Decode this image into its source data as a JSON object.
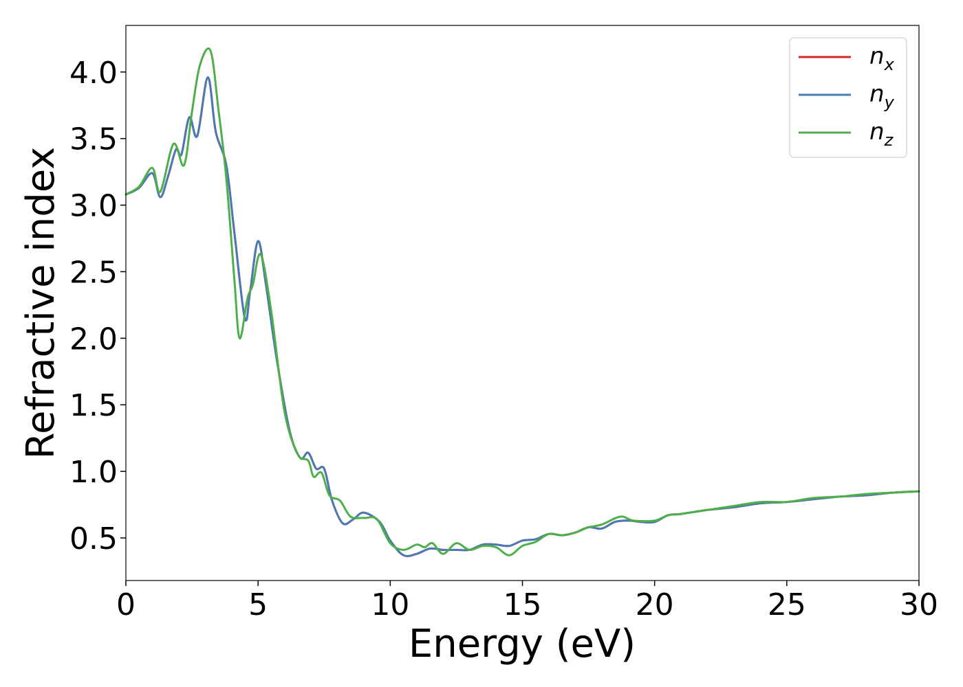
{
  "chart_data": {
    "type": "line",
    "xlabel": "Energy (eV)",
    "ylabel": "Refractive index",
    "xlim": [
      0,
      30
    ],
    "ylim": [
      0.18,
      4.35
    ],
    "xticks": [
      0,
      5,
      10,
      15,
      20,
      25,
      30
    ],
    "yticks": [
      0.5,
      1.0,
      1.5,
      2.0,
      2.5,
      3.0,
      3.5,
      4.0
    ],
    "xtick_labels": [
      "0",
      "5",
      "10",
      "15",
      "20",
      "25",
      "30"
    ],
    "ytick_labels": [
      "0.5",
      "1.0",
      "1.5",
      "2.0",
      "2.5",
      "3.0",
      "3.5",
      "4.0"
    ],
    "grid": false,
    "legend_position": "top-right",
    "series": [
      {
        "name": "n_x",
        "label_base": "n",
        "label_sub": "x",
        "color": "#d62728",
        "x": [
          0,
          0.5,
          1.0,
          1.3,
          1.6,
          1.9,
          2.1,
          2.4,
          2.7,
          3.1,
          3.4,
          3.8,
          4.1,
          4.5,
          4.7,
          5.0,
          5.3,
          5.7,
          6.2,
          6.6,
          6.9,
          7.2,
          7.5,
          7.8,
          8.2,
          8.6,
          9.0,
          9.6,
          10.0,
          10.5,
          11.0,
          11.5,
          12.0,
          12.5,
          13.0,
          13.5,
          14.0,
          14.5,
          15.0,
          15.5,
          16.0,
          16.5,
          17.0,
          17.5,
          18.0,
          18.5,
          19.0,
          19.5,
          20.0,
          20.5,
          21.0,
          22.0,
          23.0,
          24.0,
          25.0,
          26.0,
          27.0,
          28.0,
          29.0,
          30.0
        ],
        "y": [
          3.08,
          3.13,
          3.24,
          3.06,
          3.22,
          3.42,
          3.38,
          3.66,
          3.52,
          3.96,
          3.55,
          3.3,
          2.8,
          2.15,
          2.35,
          2.73,
          2.4,
          1.85,
          1.3,
          1.1,
          1.14,
          1.02,
          1.02,
          0.78,
          0.61,
          0.64,
          0.69,
          0.62,
          0.48,
          0.37,
          0.38,
          0.42,
          0.41,
          0.41,
          0.41,
          0.45,
          0.45,
          0.44,
          0.48,
          0.49,
          0.53,
          0.52,
          0.54,
          0.58,
          0.57,
          0.62,
          0.63,
          0.62,
          0.62,
          0.67,
          0.68,
          0.71,
          0.73,
          0.76,
          0.77,
          0.79,
          0.81,
          0.82,
          0.84,
          0.85
        ]
      },
      {
        "name": "n_y",
        "label_base": "n",
        "label_sub": "y",
        "color": "#4a7ab5",
        "x": [
          0,
          0.5,
          1.0,
          1.3,
          1.6,
          1.9,
          2.1,
          2.4,
          2.7,
          3.1,
          3.4,
          3.8,
          4.1,
          4.5,
          4.7,
          5.0,
          5.3,
          5.7,
          6.2,
          6.6,
          6.9,
          7.2,
          7.5,
          7.8,
          8.2,
          8.6,
          9.0,
          9.6,
          10.0,
          10.5,
          11.0,
          11.5,
          12.0,
          12.5,
          13.0,
          13.5,
          14.0,
          14.5,
          15.0,
          15.5,
          16.0,
          16.5,
          17.0,
          17.5,
          18.0,
          18.5,
          19.0,
          19.5,
          20.0,
          20.5,
          21.0,
          22.0,
          23.0,
          24.0,
          25.0,
          26.0,
          27.0,
          28.0,
          29.0,
          30.0
        ],
        "y": [
          3.08,
          3.13,
          3.24,
          3.06,
          3.22,
          3.42,
          3.38,
          3.66,
          3.52,
          3.96,
          3.55,
          3.3,
          2.8,
          2.15,
          2.35,
          2.73,
          2.4,
          1.85,
          1.3,
          1.1,
          1.14,
          1.02,
          1.02,
          0.78,
          0.61,
          0.64,
          0.69,
          0.62,
          0.48,
          0.37,
          0.38,
          0.42,
          0.41,
          0.41,
          0.41,
          0.45,
          0.45,
          0.44,
          0.48,
          0.49,
          0.53,
          0.52,
          0.54,
          0.58,
          0.57,
          0.62,
          0.63,
          0.62,
          0.62,
          0.67,
          0.68,
          0.71,
          0.73,
          0.76,
          0.77,
          0.79,
          0.81,
          0.82,
          0.84,
          0.85
        ]
      },
      {
        "name": "n_z",
        "label_base": "n",
        "label_sub": "z",
        "color": "#4daf4a",
        "x": [
          0,
          0.5,
          1.0,
          1.3,
          1.8,
          2.2,
          2.5,
          2.8,
          3.2,
          3.5,
          3.8,
          4.1,
          4.3,
          4.6,
          4.8,
          5.1,
          5.5,
          6.0,
          6.5,
          6.9,
          7.1,
          7.4,
          7.7,
          8.1,
          8.5,
          9.0,
          9.5,
          10.0,
          10.5,
          11.0,
          11.3,
          11.6,
          12.0,
          12.5,
          13.0,
          13.5,
          14.0,
          14.5,
          15.0,
          15.5,
          16.0,
          16.5,
          17.0,
          17.5,
          18.0,
          18.7,
          19.2,
          20.0,
          20.5,
          21.0,
          22.0,
          23.0,
          24.0,
          25.0,
          26.0,
          27.0,
          28.0,
          29.0,
          30.0
        ],
        "y": [
          3.08,
          3.14,
          3.28,
          3.1,
          3.46,
          3.3,
          3.7,
          4.05,
          4.16,
          3.72,
          3.2,
          2.45,
          2.0,
          2.3,
          2.4,
          2.63,
          2.2,
          1.45,
          1.13,
          1.08,
          0.96,
          0.99,
          0.82,
          0.78,
          0.66,
          0.65,
          0.64,
          0.46,
          0.41,
          0.45,
          0.43,
          0.46,
          0.38,
          0.46,
          0.41,
          0.44,
          0.43,
          0.37,
          0.44,
          0.47,
          0.53,
          0.52,
          0.54,
          0.58,
          0.6,
          0.66,
          0.63,
          0.63,
          0.67,
          0.68,
          0.71,
          0.74,
          0.77,
          0.77,
          0.8,
          0.81,
          0.83,
          0.84,
          0.85
        ]
      }
    ]
  }
}
